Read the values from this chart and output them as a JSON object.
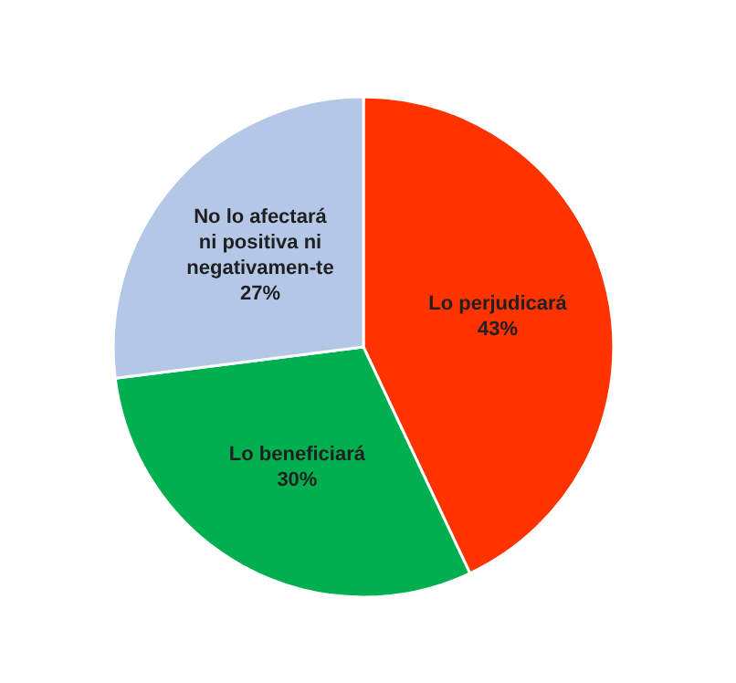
{
  "chart_data": {
    "type": "pie",
    "categories": [
      "Lo perjudicará",
      "Lo beneficiará",
      "No lo afectará ni positiva ni negativamen-te"
    ],
    "values": [
      43,
      30,
      27
    ],
    "colors": [
      "#ff3300",
      "#00b050",
      "#b4c7e7"
    ],
    "value_labels": [
      "43%",
      "30%",
      "27%"
    ]
  }
}
